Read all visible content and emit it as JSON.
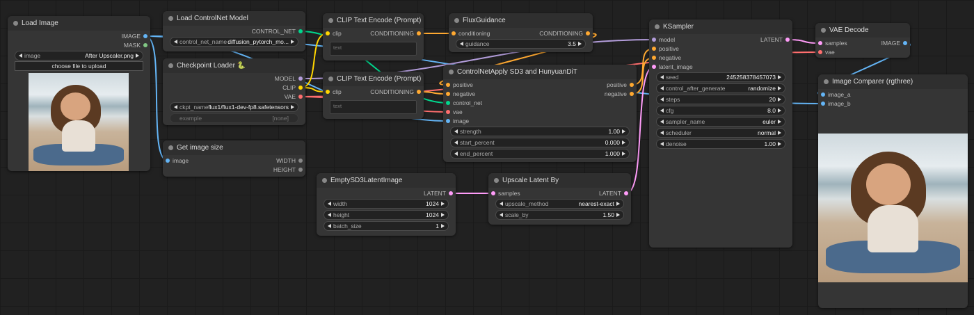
{
  "nodes": [
    {
      "title": "Load Image",
      "inputs": [],
      "outputs": [
        "IMAGE",
        "MASK"
      ],
      "widgets": [
        {
          "name": "image",
          "value": "After Upscaler.png"
        }
      ],
      "button": "choose file to upload"
    },
    {
      "title": "Load ControlNet Model",
      "inputs": [],
      "outputs": [
        "CONTROL_NET"
      ],
      "widgets": [
        {
          "name": "control_net_name",
          "value": "diffusion_pytorch_mo..."
        }
      ]
    },
    {
      "title": "Checkpoint Loader 🐍",
      "inputs": [],
      "outputs": [
        "MODEL",
        "CLIP",
        "VAE"
      ],
      "widgets": [
        {
          "name": "ckpt_name",
          "value": "flux1/flux1-dev-fp8.safetensors"
        },
        {
          "name": "example",
          "value": "[none]"
        }
      ]
    },
    {
      "title": "Get image size",
      "inputs": [
        "image"
      ],
      "outputs": [
        "WIDTH",
        "HEIGHT"
      ],
      "widgets": []
    },
    {
      "title": "CLIP Text Encode (Prompt)",
      "inputs": [
        "clip"
      ],
      "outputs": [
        "CONDITIONING"
      ],
      "widgets": [],
      "text": "text"
    },
    {
      "title": "CLIP Text Encode (Prompt)",
      "inputs": [
        "clip"
      ],
      "outputs": [
        "CONDITIONING"
      ],
      "widgets": [],
      "text": "text"
    },
    {
      "title": "FluxGuidance",
      "inputs": [
        "conditioning"
      ],
      "outputs": [
        "CONDITIONING"
      ],
      "widgets": [
        {
          "name": "guidance",
          "value": "3.5"
        }
      ]
    },
    {
      "title": "ControlNetApply SD3 and HunyuanDiT",
      "inputs": [
        "positive",
        "negative",
        "control_net",
        "vae",
        "image"
      ],
      "outputs": [
        "positive",
        "negative"
      ],
      "widgets": [
        {
          "name": "strength",
          "value": "1.00"
        },
        {
          "name": "start_percent",
          "value": "0.000"
        },
        {
          "name": "end_percent",
          "value": "1.000"
        }
      ]
    },
    {
      "title": "KSampler",
      "inputs": [
        "model",
        "positive",
        "negative",
        "latent_image"
      ],
      "outputs": [
        "LATENT"
      ],
      "widgets": [
        {
          "name": "seed",
          "value": "245258378457073"
        },
        {
          "name": "control_after_generate",
          "value": "randomize"
        },
        {
          "name": "steps",
          "value": "20"
        },
        {
          "name": "cfg",
          "value": "8.0"
        },
        {
          "name": "sampler_name",
          "value": "euler"
        },
        {
          "name": "scheduler",
          "value": "normal"
        },
        {
          "name": "denoise",
          "value": "1.00"
        }
      ]
    },
    {
      "title": "VAE Decode",
      "inputs": [
        "samples",
        "vae"
      ],
      "outputs": [
        "IMAGE"
      ],
      "widgets": []
    },
    {
      "title": "Image Comparer (rgthree)",
      "inputs": [
        "image_a",
        "image_b"
      ],
      "outputs": [],
      "widgets": []
    },
    {
      "title": "EmptySD3LatentImage",
      "inputs": [],
      "outputs": [
        "LATENT"
      ],
      "widgets": [
        {
          "name": "width",
          "value": "1024"
        },
        {
          "name": "height",
          "value": "1024"
        },
        {
          "name": "batch_size",
          "value": "1"
        }
      ]
    },
    {
      "title": "Upscale Latent By",
      "inputs": [
        "samples"
      ],
      "outputs": [
        "LATENT"
      ],
      "widgets": [
        {
          "name": "upscale_method",
          "value": "nearest-exact"
        },
        {
          "name": "scale_by",
          "value": "1.50"
        }
      ]
    }
  ]
}
